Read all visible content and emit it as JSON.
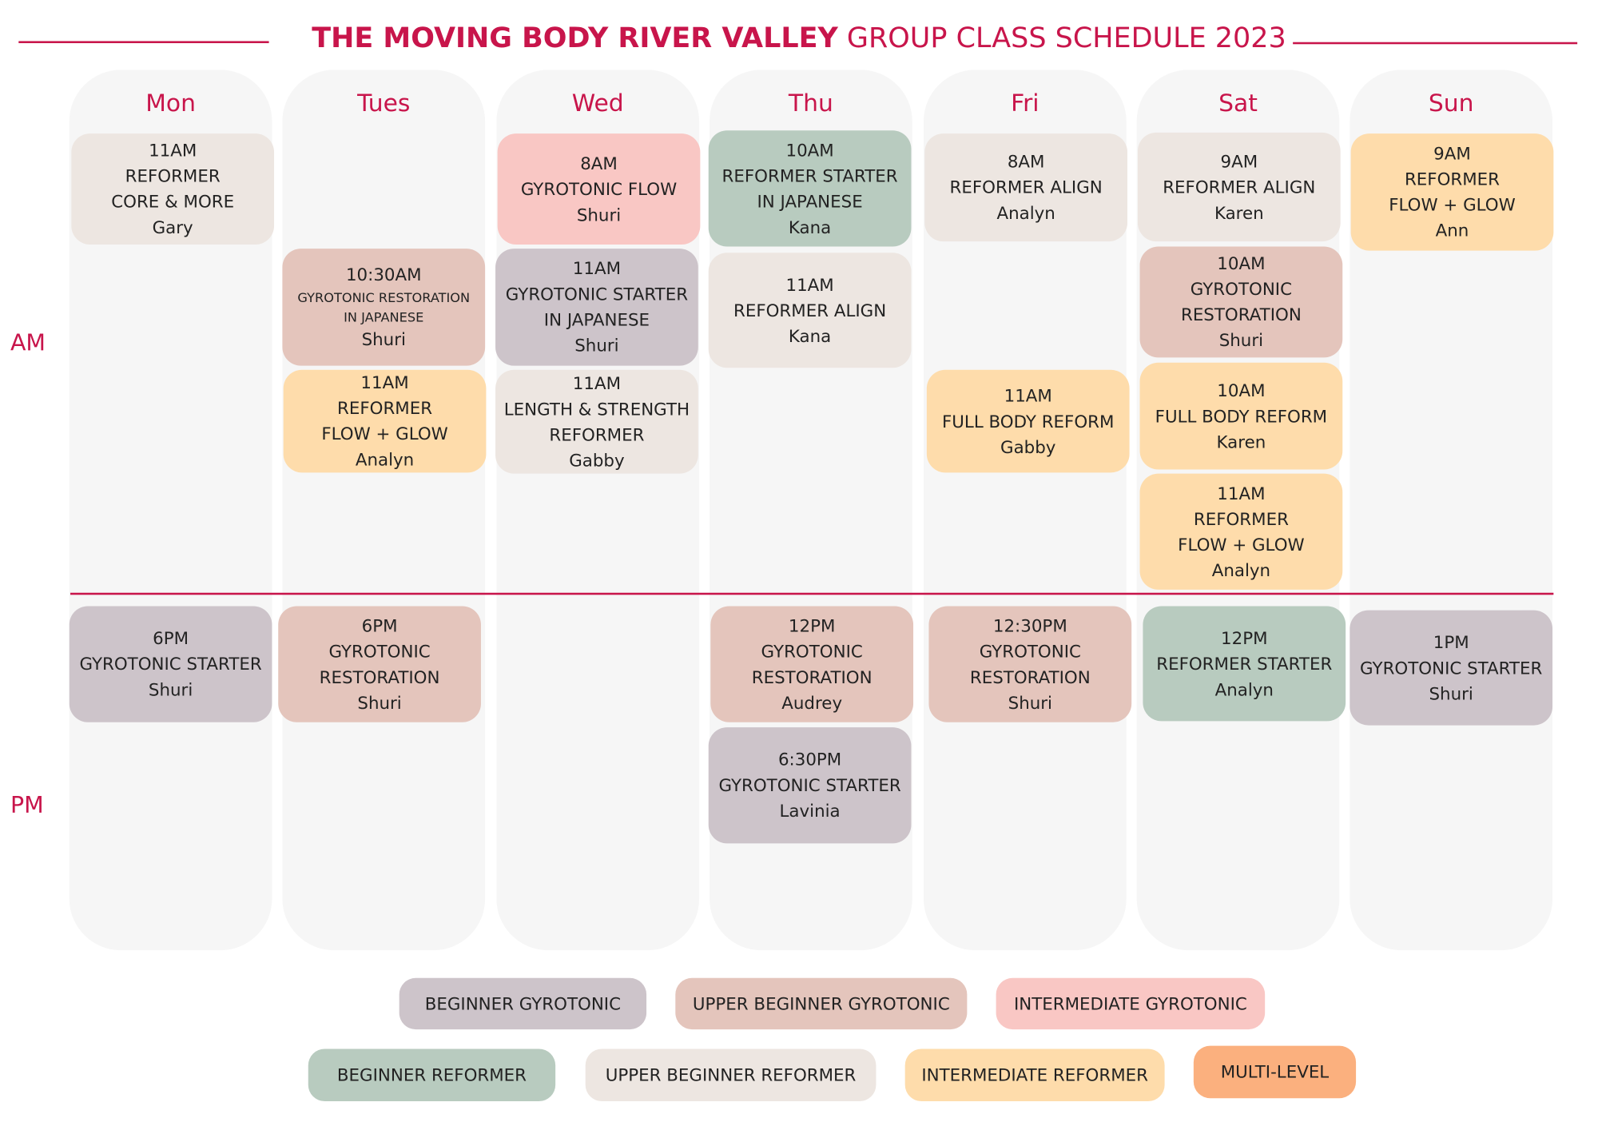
{
  "header": {
    "title_bold": "THE MOVING BODY RIVER VALLEY",
    "title_rest": "GROUP CLASS SCHEDULE 2023"
  },
  "periods": [
    "AM",
    "PM"
  ],
  "days": [
    {
      "name": "Mon",
      "classes": [
        {
          "time": "11AM",
          "lines": [
            "REFORMER",
            "CORE & MORE"
          ],
          "instructor": "Gary",
          "color": "#ede6e1"
        },
        {
          "time": "6PM",
          "lines": [
            "GYROTONIC STARTER"
          ],
          "instructor": "Shuri",
          "color": "#cdc4ca"
        }
      ]
    },
    {
      "name": "Tues",
      "classes": [
        {
          "time": "10:30AM",
          "lines": [
            "GYROTONIC RESTORATION",
            "IN JAPANESE"
          ],
          "instructor": "Shuri",
          "color": "#e4c5bc"
        },
        {
          "time": "11AM",
          "lines": [
            "REFORMER",
            "FLOW + GLOW"
          ],
          "instructor": "Analyn",
          "color": "#fedcab"
        },
        {
          "time": "6PM",
          "lines": [
            "GYROTONIC",
            "RESTORATION"
          ],
          "instructor": "Shuri",
          "color": "#e4c5bc"
        }
      ]
    },
    {
      "name": "Wed",
      "classes": [
        {
          "time": "8AM",
          "lines": [
            "GYROTONIC FLOW"
          ],
          "instructor": "Shuri",
          "color": "#f9c7c4"
        },
        {
          "time": "11AM",
          "lines": [
            "GYROTONIC STARTER",
            "IN JAPANESE"
          ],
          "instructor": "Shuri",
          "color": "#cdc4ca"
        },
        {
          "time": "11AM",
          "lines": [
            "LENGTH & STRENGTH",
            "REFORMER"
          ],
          "instructor": "Gabby",
          "color": "#ede6e1"
        }
      ]
    },
    {
      "name": "Thu",
      "classes": [
        {
          "time": "10AM",
          "lines": [
            "REFORMER STARTER",
            "IN JAPANESE"
          ],
          "instructor": "Kana",
          "color": "#b8cbbf"
        },
        {
          "time": "11AM",
          "lines": [
            "REFORMER ALIGN"
          ],
          "instructor": "Kana",
          "color": "#ede6e1"
        },
        {
          "time": "12PM",
          "lines": [
            "GYROTONIC",
            "RESTORATION"
          ],
          "instructor": "Audrey",
          "color": "#e4c5bc"
        },
        {
          "time": "6:30PM",
          "lines": [
            "GYROTONIC STARTER"
          ],
          "instructor": "Lavinia",
          "color": "#cdc4ca"
        }
      ]
    },
    {
      "name": "Fri",
      "classes": [
        {
          "time": "8AM",
          "lines": [
            "REFORMER ALIGN"
          ],
          "instructor": "Analyn",
          "color": "#ede6e1"
        },
        {
          "time": "11AM",
          "lines": [
            "FULL BODY REFORM"
          ],
          "instructor": "Gabby",
          "color": "#fedcab"
        },
        {
          "time": "12:30PM",
          "lines": [
            "GYROTONIC",
            "RESTORATION"
          ],
          "instructor": "Shuri",
          "color": "#e4c5bc"
        }
      ]
    },
    {
      "name": "Sat",
      "classes": [
        {
          "time": "9AM",
          "lines": [
            "REFORMER ALIGN"
          ],
          "instructor": "Karen",
          "color": "#ede6e1"
        },
        {
          "time": "10AM",
          "lines": [
            "GYROTONIC",
            "RESTORATION"
          ],
          "instructor": "Shuri",
          "color": "#e4c5bc"
        },
        {
          "time": "10AM",
          "lines": [
            "FULL BODY REFORM"
          ],
          "instructor": "Karen",
          "color": "#fedcab"
        },
        {
          "time": "11AM",
          "lines": [
            "REFORMER",
            "FLOW + GLOW"
          ],
          "instructor": "Analyn",
          "color": "#fedcab"
        },
        {
          "time": "12PM",
          "lines": [
            "REFORMER STARTER"
          ],
          "instructor": "Analyn",
          "color": "#b8cbbf"
        }
      ]
    },
    {
      "name": "Sun",
      "classes": [
        {
          "time": "9AM",
          "lines": [
            "REFORMER",
            "FLOW + GLOW"
          ],
          "instructor": "Ann",
          "color": "#fedcab"
        },
        {
          "time": "1PM",
          "lines": [
            "GYROTONIC STARTER"
          ],
          "instructor": "Shuri",
          "color": "#cdc4ca"
        }
      ]
    }
  ],
  "legend": [
    {
      "label": "BEGINNER GYROTONIC",
      "color": "#cdc4ca"
    },
    {
      "label": "UPPER BEGINNER GYROTONIC",
      "color": "#e4c5bc"
    },
    {
      "label": "INTERMEDIATE GYROTONIC",
      "color": "#f9c7c4"
    },
    {
      "label": "BEGINNER REFORMER",
      "color": "#b8cbbf"
    },
    {
      "label": "UPPER BEGINNER REFORMER",
      "color": "#ede6e1"
    },
    {
      "label": "INTERMEDIATE REFORMER",
      "color": "#fedcab"
    },
    {
      "label": "MULTI-LEVEL",
      "color": "#fbb07e"
    }
  ]
}
